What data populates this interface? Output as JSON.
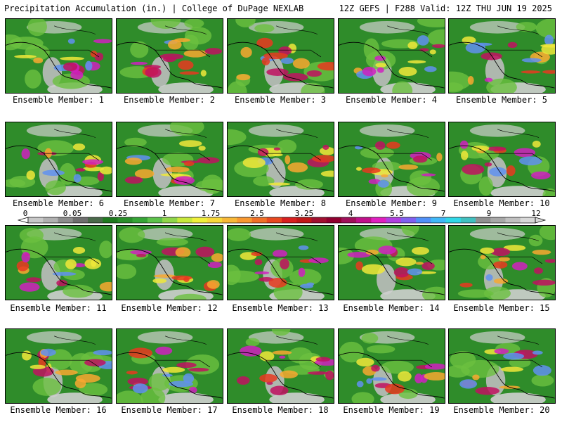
{
  "header": {
    "title_left": "Precipitation Accumulation (in.) | College of DuPage NEXLAB",
    "title_right": "12Z GEFS | F288 Valid: 12Z THU JUN 19 2025"
  },
  "member_label_prefix": "Ensemble Member:",
  "members": [
    1,
    2,
    3,
    4,
    5,
    6,
    7,
    8,
    9,
    10,
    11,
    12,
    13,
    14,
    15,
    16,
    17,
    18,
    19,
    20
  ],
  "colorbar": {
    "labels": [
      "0",
      "0.05",
      "0.25",
      "1",
      "1.75",
      "2.5",
      "3.25",
      "4",
      "5.5",
      "7",
      "9",
      "12"
    ],
    "colors": [
      "#c8c8c8",
      "#b0b0b0",
      "#8c8c8c",
      "#6e6e6e",
      "#4a6a4a",
      "#1f7a1f",
      "#2a8f2a",
      "#36a536",
      "#5cc24a",
      "#8fd64a",
      "#c8e83c",
      "#f0f03a",
      "#f8d83a",
      "#f8b838",
      "#f89830",
      "#f07028",
      "#e84820",
      "#d82020",
      "#c01818",
      "#a01030",
      "#900030",
      "#a0105a",
      "#c0108a",
      "#e020c0",
      "#b040e0",
      "#8060f0",
      "#5090f8",
      "#40b8f8",
      "#30d8e8",
      "#40c0c0",
      "#909090",
      "#a8a8a8",
      "#c0c0c0",
      "#d8d8d8"
    ]
  }
}
